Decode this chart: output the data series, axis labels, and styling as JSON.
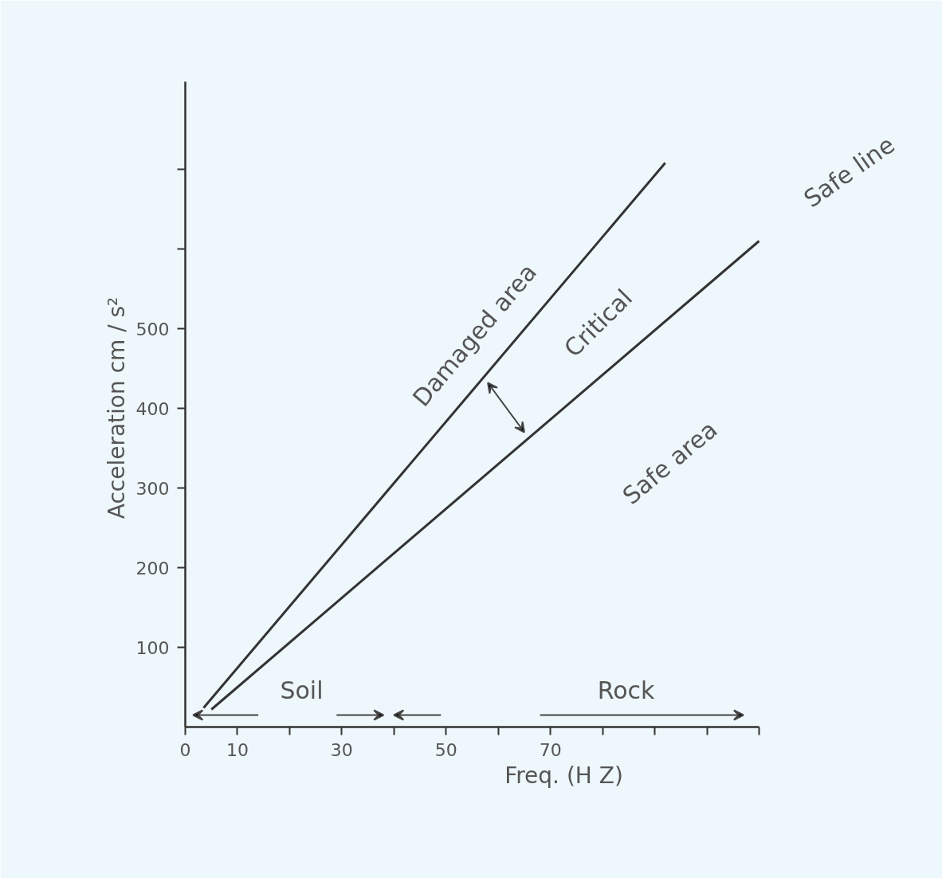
{
  "chart_data": {
    "type": "line",
    "xlabel": "Freq. (H Z)",
    "ylabel": "Acceleration  cm / s²",
    "x": [
      3.5,
      92
    ],
    "series": [
      {
        "color": "#333333",
        "values": [
          24,
          708
        ]
      },
      {
        "color": "#333333",
        "x": [
          5,
          110
        ],
        "values": [
          22,
          610
        ]
      }
    ],
    "xlim": [
      0,
      110
    ],
    "ylim": [
      0,
      810
    ],
    "xticks": [
      0,
      10,
      {
        "value": 20,
        "label": null
      },
      30,
      {
        "value": 40,
        "label": null
      },
      50,
      {
        "value": 60,
        "label": null
      },
      70,
      {
        "value": 80,
        "label": null
      },
      {
        "value": 90,
        "label": null
      },
      {
        "value": 100,
        "label": null
      },
      {
        "value": 110,
        "label": null
      }
    ],
    "yticks": [
      100,
      200,
      300,
      400,
      500,
      {
        "value": 600,
        "label": null
      },
      {
        "value": 700,
        "label": null
      }
    ],
    "annotations": [
      "Damaged area",
      "Critical",
      "Safe area",
      "Safe line",
      "Soil",
      "Rock"
    ],
    "grid": false,
    "marker": "none",
    "line_style": "solid"
  }
}
